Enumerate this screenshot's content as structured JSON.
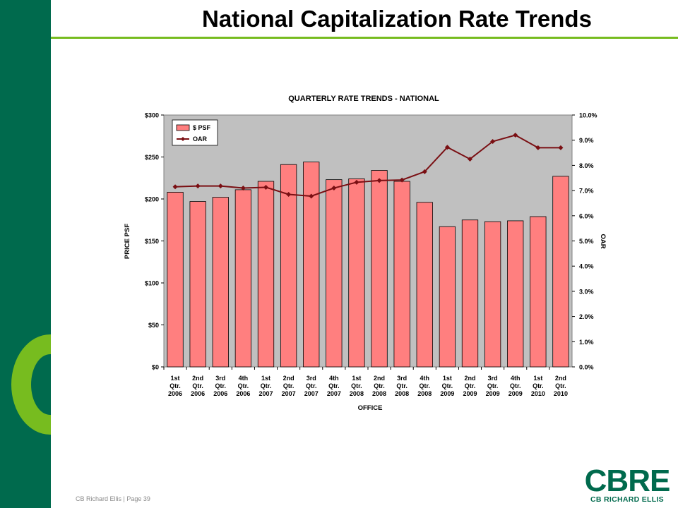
{
  "slide": {
    "title": "National Capitalization Rate Trends",
    "footer": "CB Richard Ellis | Page 39",
    "logo": {
      "mark": "CBRE",
      "subtitle": "CB RICHARD ELLIS"
    },
    "colors": {
      "brand_green": "#006a4d",
      "accent_green": "#77bc1f"
    }
  },
  "chart_data": {
    "type": "bar",
    "title": "QUARTERLY RATE TRENDS - NATIONAL",
    "xlabel": "OFFICE",
    "ylabel": "PRICE PSF",
    "y2label": "OAR",
    "categories": [
      [
        "1st",
        "Qtr.",
        "2006"
      ],
      [
        "2nd",
        "Qtr.",
        "2006"
      ],
      [
        "3rd",
        "Qtr.",
        "2006"
      ],
      [
        "4th",
        "Qtr.",
        "2006"
      ],
      [
        "1st",
        "Qtr.",
        "2007"
      ],
      [
        "2nd",
        "Qtr.",
        "2007"
      ],
      [
        "3rd",
        "Qtr.",
        "2007"
      ],
      [
        "4th",
        "Qtr.",
        "2007"
      ],
      [
        "1st",
        "Qtr.",
        "2008"
      ],
      [
        "2nd",
        "Qtr.",
        "2008"
      ],
      [
        "3rd",
        "Qtr.",
        "2008"
      ],
      [
        "4th",
        "Qtr.",
        "2008"
      ],
      [
        "1st",
        "Qtr.",
        "2009"
      ],
      [
        "2nd",
        "Qtr.",
        "2009"
      ],
      [
        "3rd",
        "Qtr.",
        "2009"
      ],
      [
        "4th",
        "Qtr.",
        "2009"
      ],
      [
        "1st",
        "Qtr.",
        "2010"
      ],
      [
        "2nd",
        "Qtr.",
        "2010"
      ]
    ],
    "series": [
      {
        "name": "$ PSF",
        "type": "bar",
        "axis": "left",
        "color": "#ff7f7f",
        "values": [
          208,
          197,
          202,
          211,
          221,
          241,
          244,
          223,
          224,
          234,
          221,
          196,
          167,
          175,
          173,
          174,
          179,
          227
        ]
      },
      {
        "name": "OAR",
        "type": "line",
        "axis": "right",
        "color": "#7a0f13",
        "values": [
          7.15,
          7.18,
          7.18,
          7.1,
          7.13,
          6.85,
          6.78,
          7.1,
          7.33,
          7.4,
          7.42,
          7.75,
          8.72,
          8.25,
          8.95,
          9.2,
          8.7,
          8.7
        ]
      }
    ],
    "ylim": [
      0,
      300
    ],
    "y_ticks": [
      "$0",
      "$50",
      "$100",
      "$150",
      "$200",
      "$250",
      "$300"
    ],
    "y2lim": [
      0,
      10
    ],
    "y2_ticks": [
      "0.0%",
      "1.0%",
      "2.0%",
      "3.0%",
      "4.0%",
      "5.0%",
      "6.0%",
      "7.0%",
      "8.0%",
      "9.0%",
      "10.0%"
    ],
    "plot_background": "#c0c0c0",
    "grid": false,
    "legend_position": "top-left"
  }
}
